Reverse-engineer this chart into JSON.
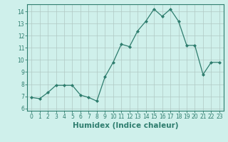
{
  "x": [
    0,
    1,
    2,
    3,
    4,
    5,
    6,
    7,
    8,
    9,
    10,
    11,
    12,
    13,
    14,
    15,
    16,
    17,
    18,
    19,
    20,
    21,
    22,
    23
  ],
  "y": [
    6.9,
    6.8,
    7.3,
    7.9,
    7.9,
    7.9,
    7.1,
    6.9,
    6.6,
    8.6,
    9.8,
    11.3,
    11.1,
    12.4,
    13.2,
    14.2,
    13.6,
    14.2,
    13.2,
    11.2,
    11.2,
    8.8,
    9.8,
    9.8
  ],
  "line_color": "#2e7d6e",
  "marker": "D",
  "marker_size": 2,
  "bg_color": "#cff0eb",
  "grid_color": "#b0c8c4",
  "xlabel": "Humidex (Indice chaleur)",
  "xlim": [
    -0.5,
    23.5
  ],
  "ylim": [
    5.8,
    14.6
  ],
  "yticks": [
    6,
    7,
    8,
    9,
    10,
    11,
    12,
    13,
    14
  ],
  "xticks": [
    0,
    1,
    2,
    3,
    4,
    5,
    6,
    7,
    8,
    9,
    10,
    11,
    12,
    13,
    14,
    15,
    16,
    17,
    18,
    19,
    20,
    21,
    22,
    23
  ],
  "tick_fontsize": 5.5,
  "label_fontsize": 7.5
}
